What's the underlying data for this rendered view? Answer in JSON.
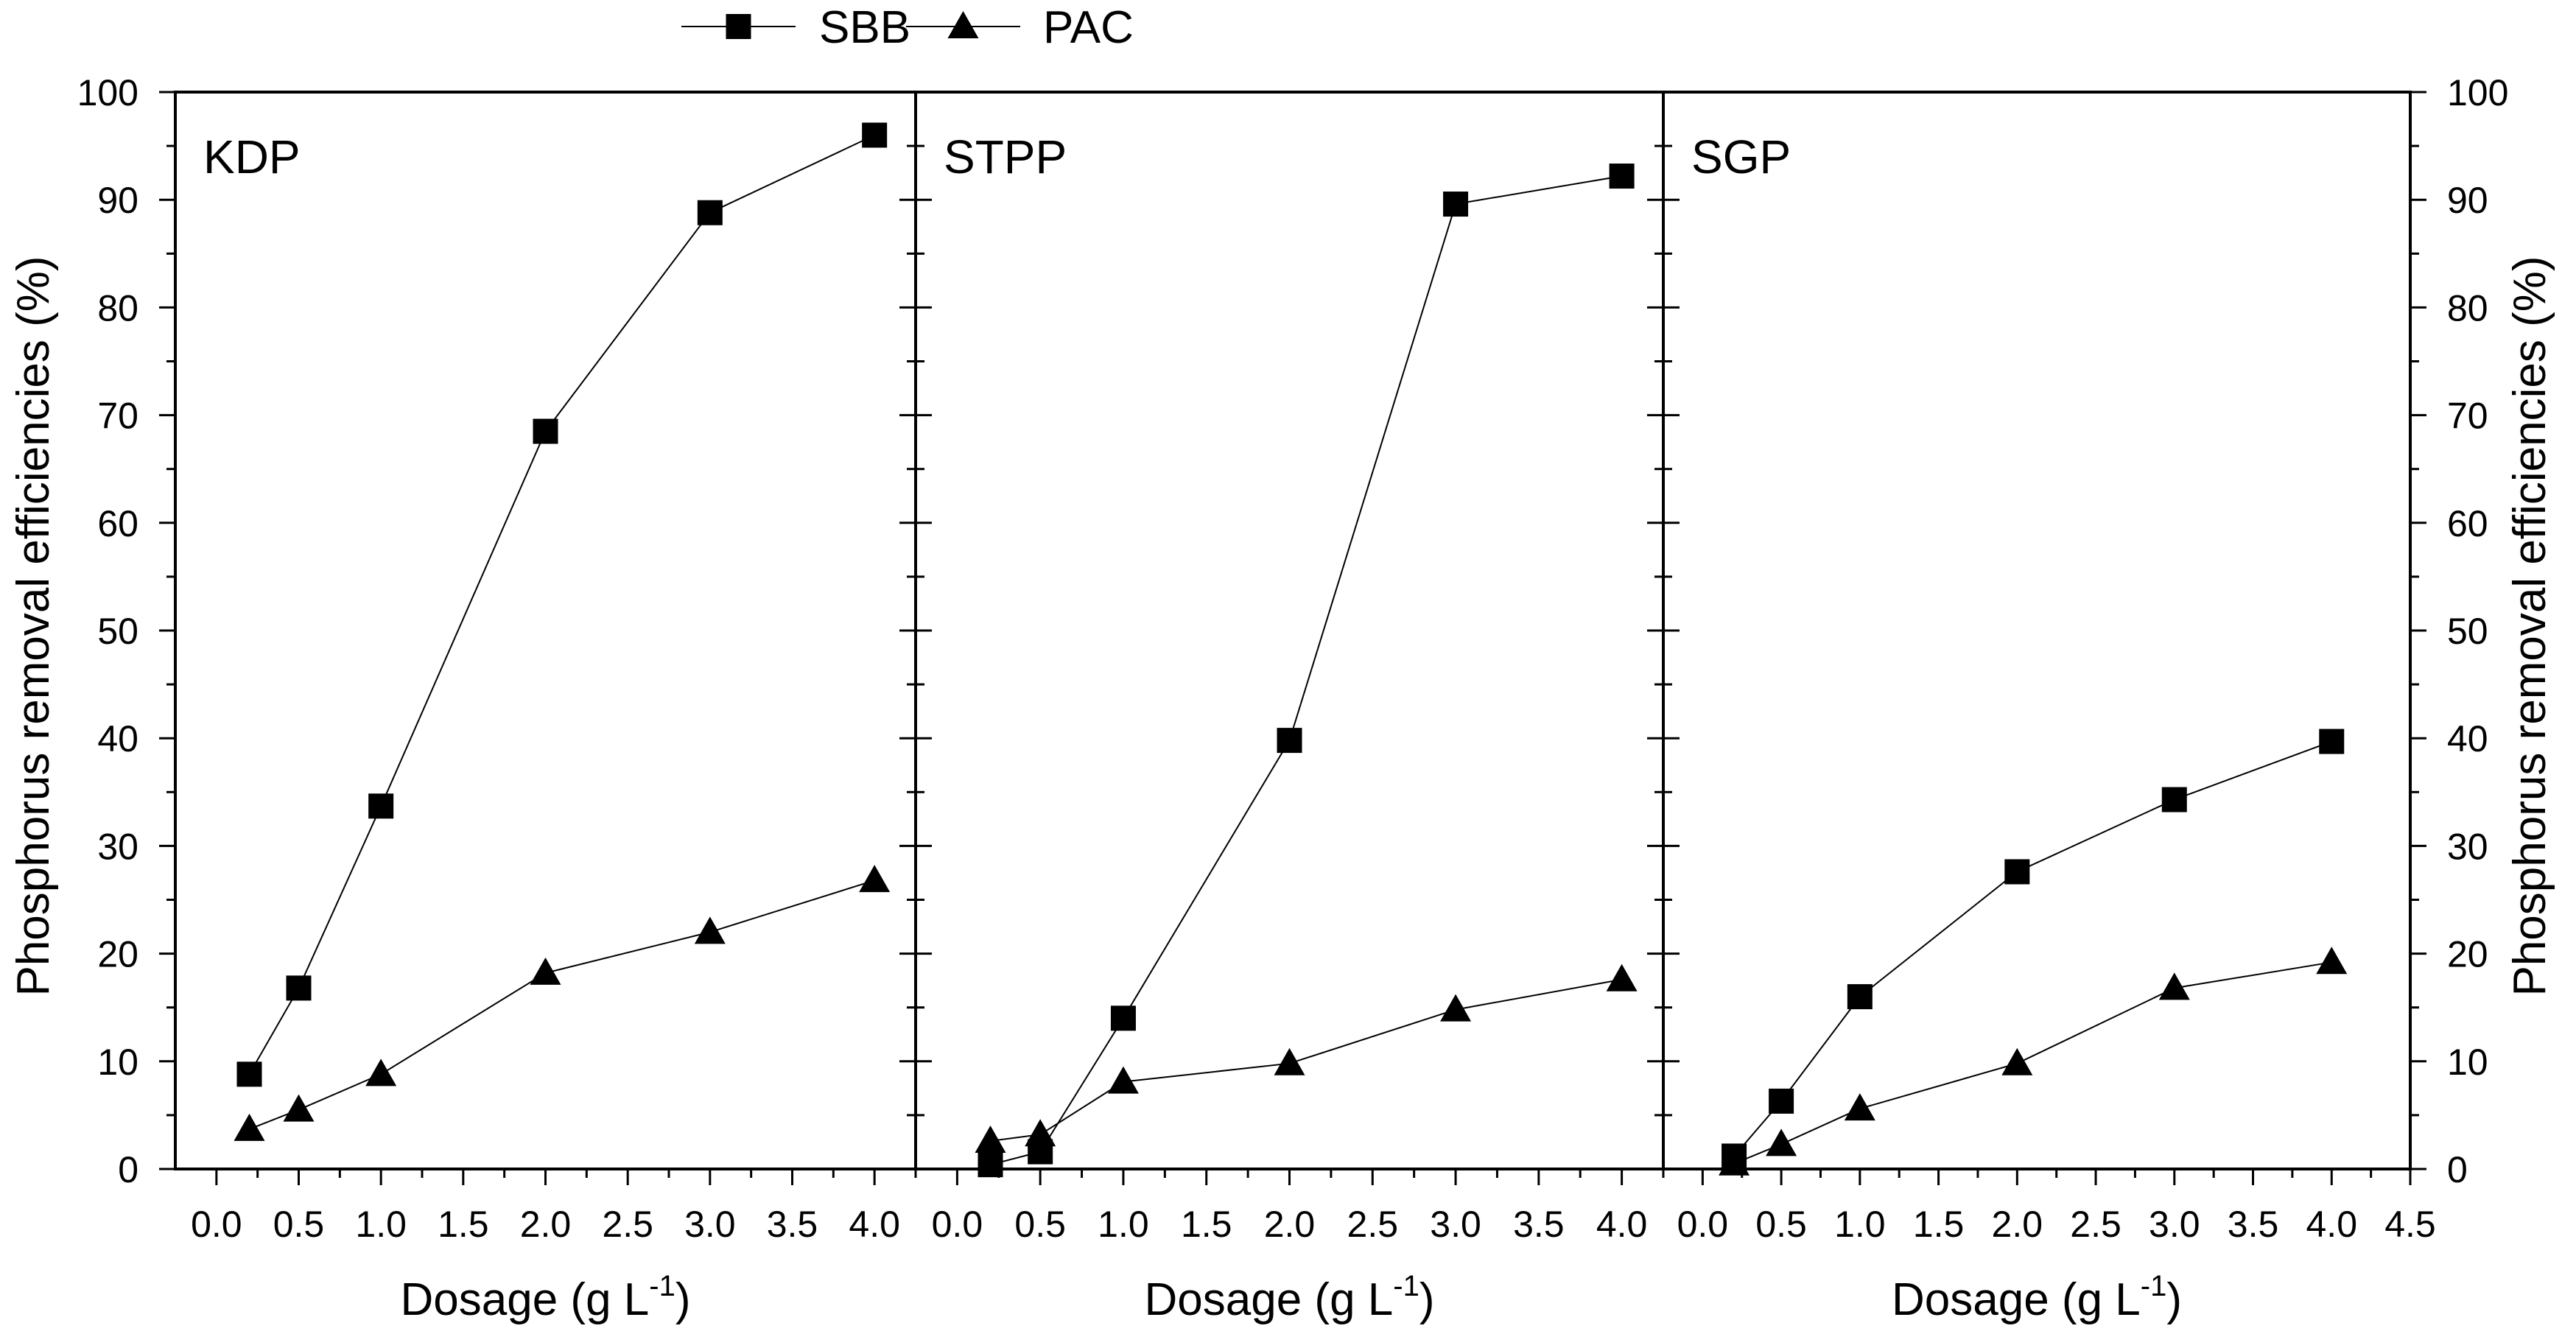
{
  "chart_data": {
    "type": "line",
    "legend": {
      "position": "top-center",
      "entries": [
        {
          "label": "SBB",
          "marker": "square"
        },
        {
          "label": "PAC",
          "marker": "triangle"
        }
      ]
    },
    "xlabel": {
      "main": "Dosage (g L",
      "sup": "-1",
      "close": ")"
    },
    "ylabel": "Phosphorus removal efficiencies (%)",
    "ylim": [
      0,
      100
    ],
    "y_ticks": [
      "0",
      "10",
      "20",
      "30",
      "40",
      "50",
      "60",
      "70",
      "80",
      "90",
      "100"
    ],
    "panels": [
      {
        "label": "KDP",
        "xlim": [
          -0.25,
          4.25
        ],
        "x_ticks": [
          "0.0",
          "0.5",
          "1.0",
          "1.5",
          "2.0",
          "2.5",
          "3.0",
          "3.5",
          "4.0"
        ],
        "series": [
          {
            "name": "SBB",
            "x": [
              0.2,
              0.5,
              1.0,
              2.0,
              3.0,
              4.0
            ],
            "y": [
              8.8,
              16.8,
              33.7,
              68.5,
              88.8,
              96.0
            ]
          },
          {
            "name": "PAC",
            "x": [
              0.2,
              0.5,
              1.0,
              2.0,
              3.0,
              4.0
            ],
            "y": [
              3.7,
              5.5,
              8.8,
              18.2,
              22.0,
              26.8
            ]
          }
        ]
      },
      {
        "label": "STPP",
        "xlim": [
          -0.25,
          4.25
        ],
        "x_ticks": [
          "0.0",
          "0.5",
          "1.0",
          "1.5",
          "2.0",
          "2.5",
          "3.0",
          "3.5",
          "4.0"
        ],
        "series": [
          {
            "name": "SBB",
            "x": [
              0.2,
              0.5,
              1.0,
              2.0,
              3.0,
              4.0
            ],
            "y": [
              0.4,
              1.6,
              14.0,
              39.8,
              89.6,
              92.2
            ]
          },
          {
            "name": "PAC",
            "x": [
              0.2,
              0.5,
              1.0,
              2.0,
              3.0,
              4.0
            ],
            "y": [
              2.6,
              3.2,
              8.1,
              9.8,
              14.8,
              17.6
            ]
          }
        ]
      },
      {
        "label": "SGP",
        "xlim": [
          -0.25,
          4.5
        ],
        "x_ticks": [
          "0.0",
          "0.5",
          "1.0",
          "1.5",
          "2.0",
          "2.5",
          "3.0",
          "3.5",
          "4.0",
          "4.5"
        ],
        "series": [
          {
            "name": "SBB",
            "x": [
              0.2,
              0.5,
              1.0,
              2.0,
              3.0,
              4.0
            ],
            "y": [
              1.2,
              6.3,
              16.0,
              27.6,
              34.3,
              39.7
            ]
          },
          {
            "name": "PAC",
            "x": [
              0.2,
              0.5,
              1.0,
              2.0,
              3.0,
              4.0
            ],
            "y": [
              0.5,
              2.3,
              5.6,
              9.8,
              16.8,
              19.2
            ]
          }
        ]
      }
    ]
  }
}
